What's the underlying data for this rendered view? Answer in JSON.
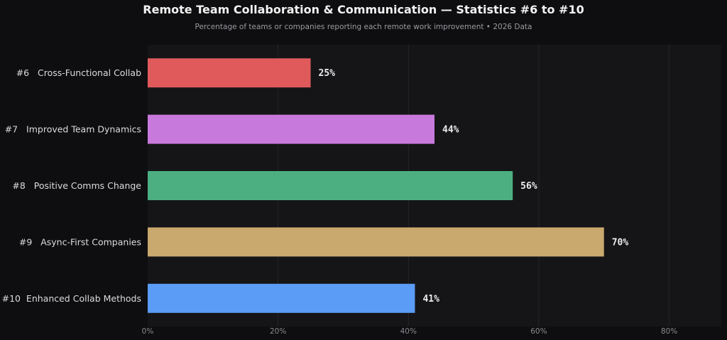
{
  "chart_data": {
    "type": "bar",
    "orientation": "horizontal",
    "title": "Remote Team Collaboration & Communication — Statistics #6 to #10",
    "subtitle": "Percentage of teams or companies reporting each remote work improvement  •  2026 Data",
    "categories": [
      "#6   Cross-Functional Collab",
      "#7   Improved Team Dynamics",
      "#8   Positive Comms Change",
      "#9   Async-First Companies",
      "#10  Enhanced Collab Methods"
    ],
    "values": [
      25,
      44,
      56,
      70,
      41
    ],
    "value_labels": [
      "25%",
      "44%",
      "56%",
      "70%",
      "41%"
    ],
    "bar_colors": [
      "#e05a5c",
      "#c879dc",
      "#4caf82",
      "#c9a96e",
      "#5b9cf6"
    ],
    "xlim": [
      0,
      88
    ],
    "xticks": [
      0,
      20,
      40,
      60,
      80
    ],
    "xtick_labels": [
      "0%",
      "20%",
      "40%",
      "60%",
      "80%"
    ],
    "grid": true,
    "legend": "none",
    "background": "#0e0e10",
    "plot_background": "#151517"
  }
}
